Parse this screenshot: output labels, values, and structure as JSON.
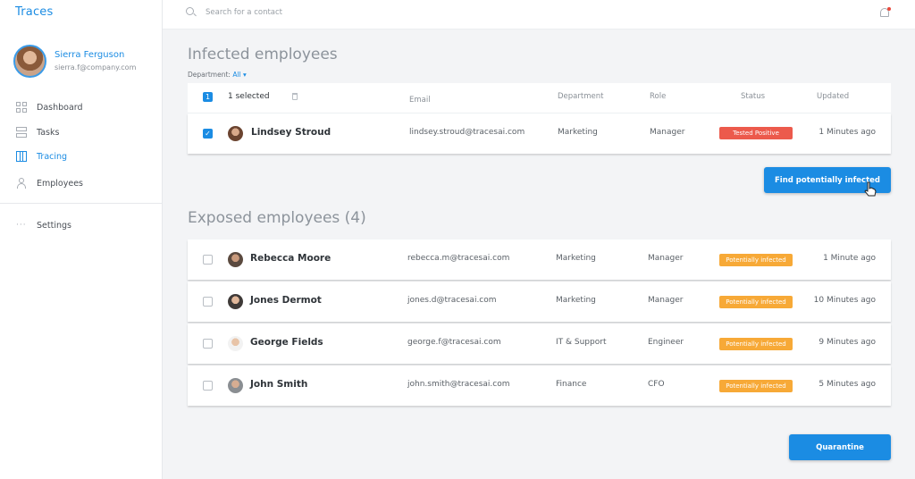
{
  "app": {
    "brand": "Traces"
  },
  "user": {
    "name": "Sierra Ferguson",
    "email": "sierra.f@company.com"
  },
  "nav": [
    {
      "label": "Dashboard",
      "icon": "dashboard-icon"
    },
    {
      "label": "Tasks",
      "icon": "tasks-icon"
    },
    {
      "label": "Tracing",
      "icon": "tracing-icon",
      "active": true
    },
    {
      "label": "Employees",
      "icon": "employees-icon"
    },
    {
      "label": "Settings",
      "icon": "settings-icon"
    }
  ],
  "search": {
    "placeholder": "Search for a contact"
  },
  "infected": {
    "title": "Infected employees",
    "department_label": "Department:",
    "department_value": "All",
    "selected_label": "1 selected",
    "columns": {
      "email": "Email",
      "department": "Department",
      "role": "Role",
      "status": "Status",
      "updated": "Updated"
    },
    "rows": [
      {
        "name": "Lindsey Stroud",
        "email": "lindsey.stroud@tracesai.com",
        "department": "Marketing",
        "role": "Manager",
        "status": "Tested Positive",
        "updated": "1 Minutes ago",
        "checked": true
      }
    ]
  },
  "find_button": "Find potentially infected",
  "exposed": {
    "title": "Exposed employees (4)",
    "rows": [
      {
        "name": "Rebecca Moore",
        "email": "rebecca.m@tracesai.com",
        "department": "Marketing",
        "role": "Manager",
        "status": "Potentially infected",
        "updated": "1 Minute ago"
      },
      {
        "name": "Jones Dermot",
        "email": "jones.d@tracesai.com",
        "department": "Marketing",
        "role": "Manager",
        "status": "Potentially infected",
        "updated": "10 Minutes ago"
      },
      {
        "name": "George Fields",
        "email": "george.f@tracesai.com",
        "department": "IT & Support",
        "role": "Engineer",
        "status": "Potentially infected",
        "updated": "9 Minutes ago"
      },
      {
        "name": "John Smith",
        "email": "john.smith@tracesai.com",
        "department": "Finance",
        "role": "CFO",
        "status": "Potentially infected",
        "updated": "5 Minutes ago"
      }
    ]
  },
  "quarantine_button": "Quarantine",
  "colors": {
    "accent": "#1b8ce3",
    "positive": "#ec5a4c",
    "potential": "#f7a937"
  }
}
